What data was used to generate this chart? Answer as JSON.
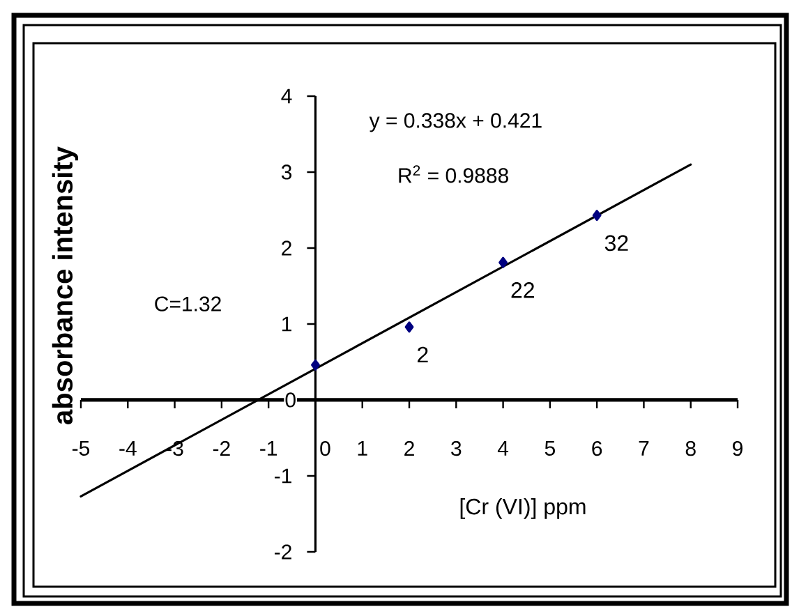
{
  "chart_data": {
    "type": "scatter",
    "xlabel": "[Cr (VI)] ppm",
    "ylabel": "absorbance intensity",
    "xlim": [
      -5,
      9
    ],
    "ylim": [
      -2,
      4
    ],
    "xticks": [
      -5,
      -4,
      -3,
      -2,
      -1,
      0,
      1,
      2,
      3,
      4,
      5,
      6,
      7,
      8,
      9
    ],
    "yticks": [
      -2,
      -1,
      0,
      1,
      2,
      3,
      4
    ],
    "series": [
      {
        "color": "#000080",
        "marker": "diamond",
        "x": [
          0,
          2,
          4,
          6
        ],
        "values": [
          0.46,
          0.96,
          1.81,
          2.43
        ]
      },
      {
        "type": "line",
        "color": "#000000",
        "marker": "none",
        "line_style": "solid",
        "x": [
          -5,
          8
        ],
        "values": [
          -1.27,
          3.1
        ]
      }
    ],
    "annotations": [
      "y = 0.338x + 0.421",
      "R$^{2}$ = 0.9888",
      "C=1.32",
      {
        "text": "2",
        "x": 2,
        "y": 0.96
      },
      {
        "text": "22",
        "x": 4,
        "y": 1.81
      },
      {
        "text": "32",
        "x": 6,
        "y": 2.43
      }
    ]
  }
}
